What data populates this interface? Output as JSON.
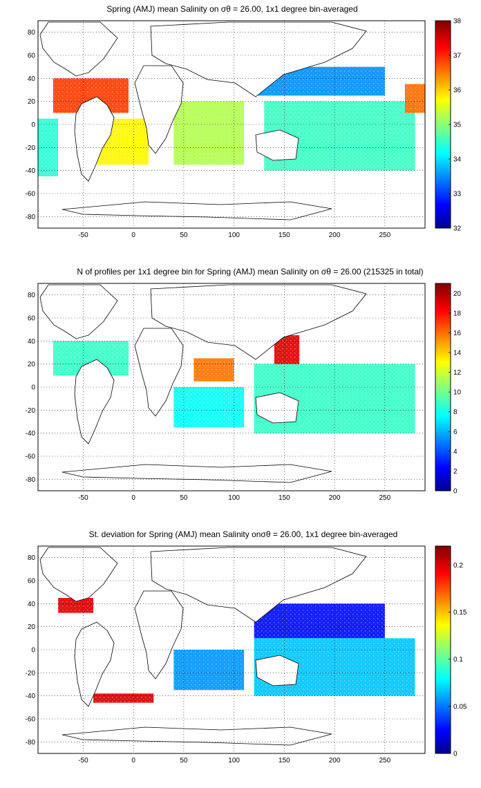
{
  "chart_data": [
    {
      "type": "heatmap",
      "title": "Spring (AMJ) mean Salinity on σθ = 26.00, 1x1 degree bin-averaged",
      "xticks": [
        "-50",
        "0",
        "50",
        "100",
        "150",
        "200",
        "250"
      ],
      "xtick_values": [
        -50,
        0,
        50,
        100,
        150,
        200,
        250
      ],
      "yticks": [
        "80",
        "60",
        "40",
        "20",
        "0",
        "-20",
        "-40",
        "-60",
        "-80"
      ],
      "ytick_values": [
        80,
        60,
        40,
        20,
        0,
        -20,
        -40,
        -60,
        -80
      ],
      "xlim": [
        -95,
        290
      ],
      "ylim": [
        -90,
        90
      ],
      "grid": true,
      "colormap": "jet",
      "clim": [
        32,
        38
      ],
      "colorbar_ticks": [
        "38",
        "37",
        "36",
        "35",
        "34",
        "33",
        "32"
      ],
      "colorbar_tick_values": [
        38,
        37,
        36,
        35,
        34,
        33,
        32
      ],
      "regions": [
        {
          "lon": [
            -80,
            -5
          ],
          "lat": [
            10,
            40
          ],
          "value": 36.9
        },
        {
          "lon": [
            -45,
            15
          ],
          "lat": [
            -35,
            5
          ],
          "value": 35.8
        },
        {
          "lon": [
            -95,
            -75
          ],
          "lat": [
            -45,
            5
          ],
          "value": 34.5
        },
        {
          "lon": [
            40,
            110
          ],
          "lat": [
            -35,
            20
          ],
          "value": 35.3
        },
        {
          "lon": [
            120,
            250
          ],
          "lat": [
            25,
            50
          ],
          "value": 33.6
        },
        {
          "lon": [
            130,
            280
          ],
          "lat": [
            -40,
            20
          ],
          "value": 34.6
        },
        {
          "lon": [
            270,
            290
          ],
          "lat": [
            10,
            35
          ],
          "value": 36.6
        }
      ]
    },
    {
      "type": "heatmap",
      "title": "N of profiles per 1x1 degree bin for Spring (AMJ) mean Salinity on σθ = 26.00 (215325 in total)",
      "xticks": [
        "-50",
        "0",
        "50",
        "100",
        "150",
        "200",
        "250"
      ],
      "xtick_values": [
        -50,
        0,
        50,
        100,
        150,
        200,
        250
      ],
      "yticks": [
        "80",
        "60",
        "40",
        "20",
        "0",
        "-20",
        "-40",
        "-60",
        "-80"
      ],
      "ytick_values": [
        80,
        60,
        40,
        20,
        0,
        -20,
        -40,
        -60,
        -80
      ],
      "xlim": [
        -95,
        290
      ],
      "ylim": [
        -90,
        90
      ],
      "grid": true,
      "colormap": "jet",
      "clim": [
        0,
        21
      ],
      "colorbar_ticks": [
        "20",
        "18",
        "16",
        "14",
        "12",
        "10",
        "8",
        "6",
        "4",
        "2",
        "0"
      ],
      "colorbar_tick_values": [
        20,
        18,
        16,
        14,
        12,
        10,
        8,
        6,
        4,
        2,
        0
      ],
      "regions": [
        {
          "lon": [
            140,
            165
          ],
          "lat": [
            20,
            45
          ],
          "value": 19
        },
        {
          "lon": [
            -80,
            -5
          ],
          "lat": [
            10,
            40
          ],
          "value": 9
        },
        {
          "lon": [
            60,
            100
          ],
          "lat": [
            5,
            25
          ],
          "value": 16
        },
        {
          "lon": [
            40,
            110
          ],
          "lat": [
            -35,
            0
          ],
          "value": 8
        },
        {
          "lon": [
            120,
            280
          ],
          "lat": [
            -40,
            20
          ],
          "value": 9
        }
      ]
    },
    {
      "type": "heatmap",
      "title": "St. deviation for Spring (AMJ) mean Salinity onσθ = 26.00, 1x1 degree bin-averaged",
      "xticks": [
        "-50",
        "0",
        "50",
        "100",
        "150",
        "200",
        "250"
      ],
      "xtick_values": [
        -50,
        0,
        50,
        100,
        150,
        200,
        250
      ],
      "yticks": [
        "80",
        "60",
        "40",
        "20",
        "0",
        "-20",
        "-40",
        "-60",
        "-80"
      ],
      "ytick_values": [
        80,
        60,
        40,
        20,
        0,
        -20,
        -40,
        -60,
        -80
      ],
      "xlim": [
        -95,
        290
      ],
      "ylim": [
        -90,
        90
      ],
      "grid": true,
      "colormap": "jet",
      "clim": [
        0,
        0.22
      ],
      "colorbar_ticks": [
        "0.2",
        "0.15",
        "0.1",
        "0.05",
        "0"
      ],
      "colorbar_tick_values": [
        0.2,
        0.15,
        0.1,
        0.05,
        0
      ],
      "regions": [
        {
          "lon": [
            -75,
            -40
          ],
          "lat": [
            32,
            45
          ],
          "value": 0.2
        },
        {
          "lon": [
            -40,
            20
          ],
          "lat": [
            -46,
            -38
          ],
          "value": 0.2
        },
        {
          "lon": [
            120,
            250
          ],
          "lat": [
            10,
            40
          ],
          "value": 0.03
        },
        {
          "lon": [
            40,
            110
          ],
          "lat": [
            -35,
            0
          ],
          "value": 0.06
        },
        {
          "lon": [
            120,
            280
          ],
          "lat": [
            -40,
            10
          ],
          "value": 0.07
        }
      ]
    }
  ]
}
